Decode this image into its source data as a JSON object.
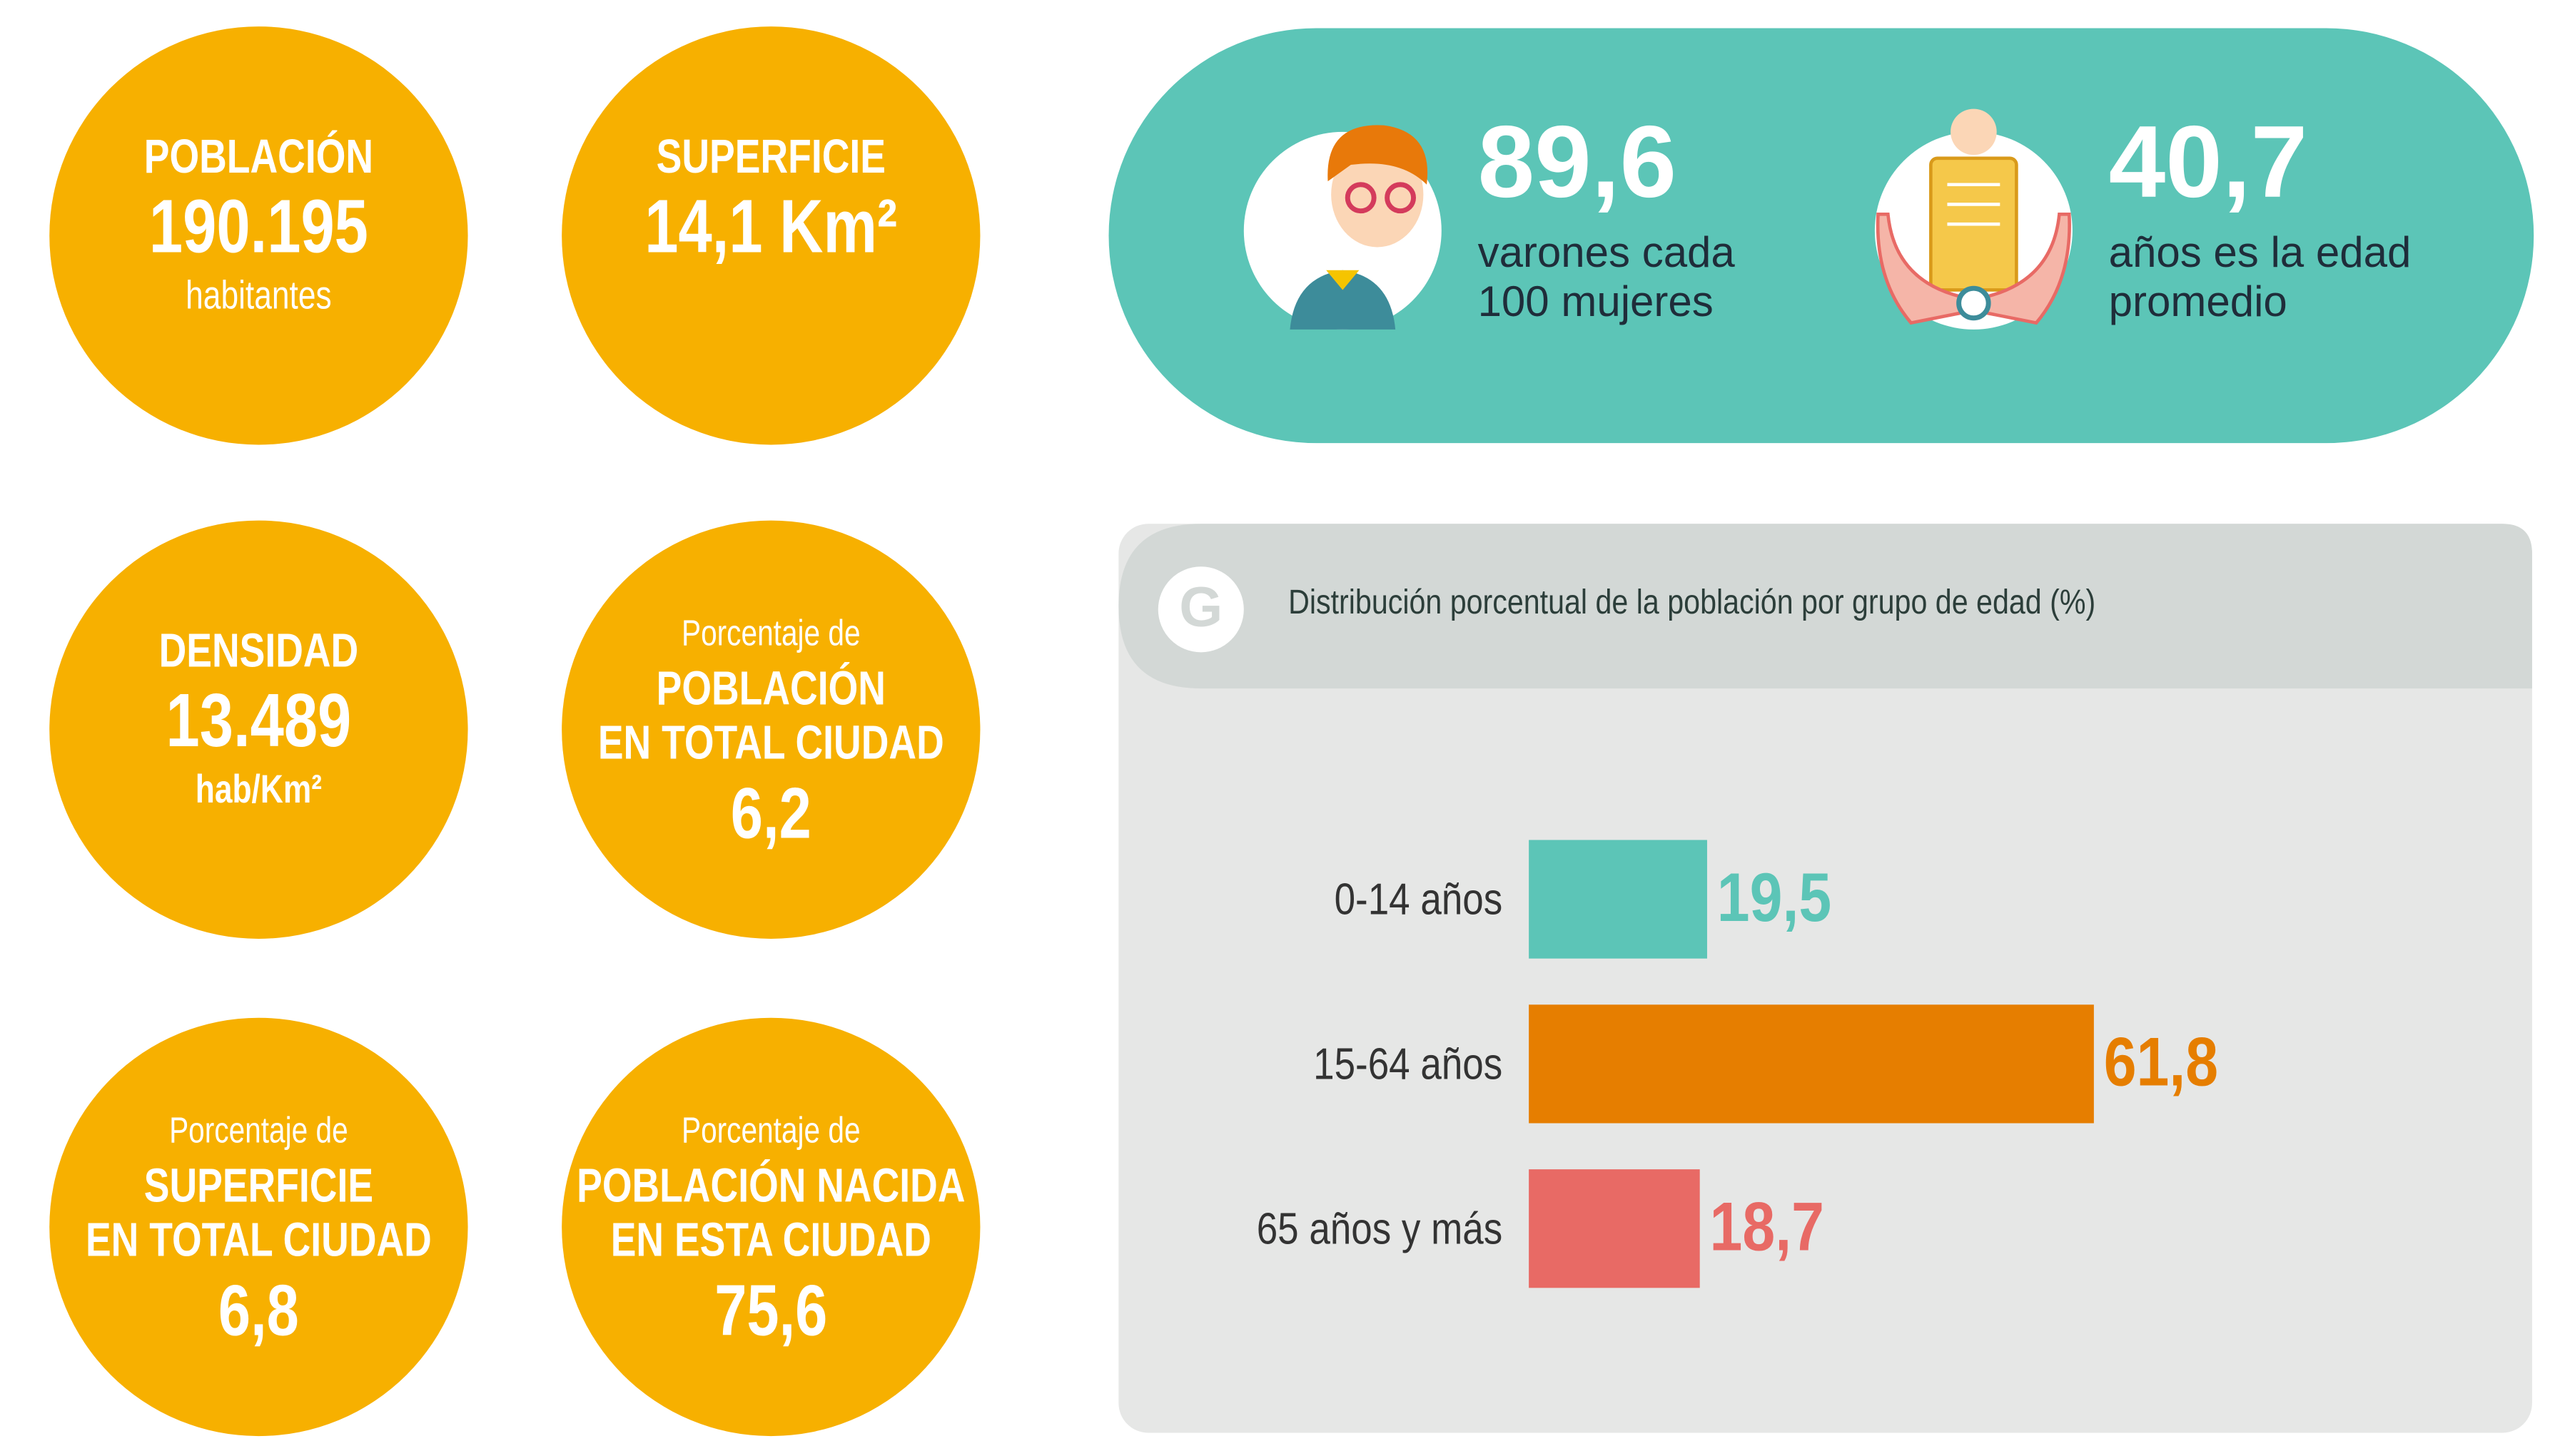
{
  "stats": [
    {
      "title": "POBLACIÓN",
      "value": "190.195",
      "unit": "habitantes"
    },
    {
      "title": "SUPERFICIE",
      "value": "14,1 Km²"
    },
    {
      "title": "DENSIDAD",
      "value": "13.489",
      "unit": "hab/Km²"
    },
    {
      "intro": "Porcentaje de",
      "lines": [
        "POBLACIÓN",
        "EN TOTAL CIUDAD"
      ],
      "value": "6,2"
    },
    {
      "intro": "Porcentaje de",
      "lines": [
        "SUPERFICIE",
        "EN TOTAL CIUDAD"
      ],
      "value": "6,8"
    },
    {
      "intro": "Porcentaje de",
      "lines": [
        "POBLACIÓN NACIDA",
        "EN ESTA CIUDAD"
      ],
      "value": "75,6"
    }
  ],
  "highlights": [
    {
      "value": "89,6",
      "lines": [
        "varones cada",
        "100 mujeres"
      ]
    },
    {
      "value": "40,7",
      "lines": [
        "años es la edad",
        "promedio"
      ]
    }
  ],
  "badge": "G",
  "chart_data": {
    "type": "bar",
    "orientation": "horizontal",
    "title": "Distribución porcentual de la población por grupo de edad (%)",
    "categories": [
      "0-14 años",
      "15-64 años",
      "65 años y más"
    ],
    "values": [
      19.5,
      61.8,
      18.7
    ],
    "value_labels": [
      "19,5",
      "61,8",
      "18,7"
    ],
    "colors": [
      "#5cc5b7",
      "#e67e00",
      "#e86a65"
    ]
  }
}
